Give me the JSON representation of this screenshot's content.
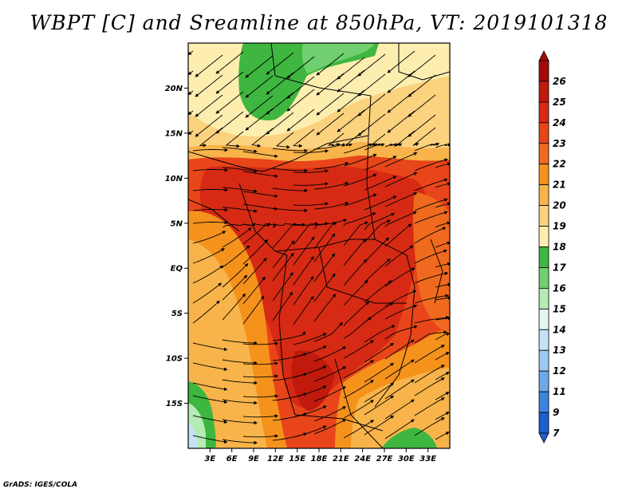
{
  "title": "WBPT [C] and Sreamline at 850hPa, VT: 2019101318",
  "credit": "GrADS: IGES/COLA",
  "map": {
    "lon_range": [
      0,
      36
    ],
    "lat_range": [
      -20,
      25
    ],
    "lon_ticks": [
      {
        "value": 3,
        "label": "3E"
      },
      {
        "value": 6,
        "label": "6E"
      },
      {
        "value": 9,
        "label": "9E"
      },
      {
        "value": 12,
        "label": "12E"
      },
      {
        "value": 15,
        "label": "15E"
      },
      {
        "value": 18,
        "label": "18E"
      },
      {
        "value": 21,
        "label": "21E"
      },
      {
        "value": 24,
        "label": "24E"
      },
      {
        "value": 27,
        "label": "27E"
      },
      {
        "value": 30,
        "label": "30E"
      },
      {
        "value": 33,
        "label": "33E"
      }
    ],
    "lat_ticks": [
      {
        "value": 20,
        "label": "20N"
      },
      {
        "value": 15,
        "label": "15N"
      },
      {
        "value": 10,
        "label": "10N"
      },
      {
        "value": 5,
        "label": "5N"
      },
      {
        "value": 0,
        "label": "EQ"
      },
      {
        "value": -5,
        "label": "5S"
      },
      {
        "value": -10,
        "label": "10S"
      },
      {
        "value": -15,
        "label": "15S"
      }
    ]
  },
  "colorbar": {
    "levels": [
      {
        "label": "26",
        "color": "#a50a0a"
      },
      {
        "label": "25",
        "color": "#c01a0c"
      },
      {
        "label": "24",
        "color": "#d62a14"
      },
      {
        "label": "23",
        "color": "#e8461a"
      },
      {
        "label": "22",
        "color": "#ef6a1e"
      },
      {
        "label": "21",
        "color": "#f5921c"
      },
      {
        "label": "20",
        "color": "#f8b44a"
      },
      {
        "label": "19",
        "color": "#fbd27e"
      },
      {
        "label": "18",
        "color": "#fdeeb0"
      },
      {
        "label": "17",
        "color": "#3fb63f"
      },
      {
        "label": "16",
        "color": "#70d070"
      },
      {
        "label": "15",
        "color": "#b4ecb4"
      },
      {
        "label": "14",
        "color": "#e4f6f6"
      },
      {
        "label": "13",
        "color": "#c4e2f6"
      },
      {
        "label": "12",
        "color": "#9ccaf2"
      },
      {
        "label": "11",
        "color": "#6eaaea"
      },
      {
        "label": "9",
        "color": "#3c84dc"
      },
      {
        "label": "7",
        "color": "#1e5ed0"
      }
    ]
  }
}
